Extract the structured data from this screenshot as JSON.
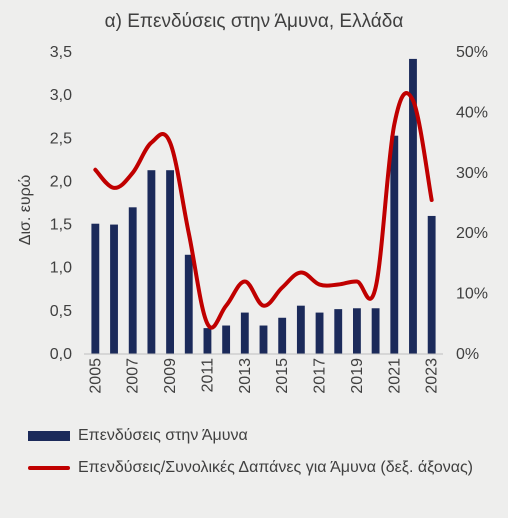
{
  "chart_data": {
    "type": "bar",
    "title": "α) Επενδύσεις στην Άμυνα, Ελλάδα",
    "ylabel": "Δισ. ευρώ",
    "ylim": [
      0,
      3.5
    ],
    "y2lim": [
      0,
      50
    ],
    "y_ticks": [
      "0,0",
      "0,5",
      "1,0",
      "1,5",
      "2,0",
      "2,5",
      "3,0",
      "3,5"
    ],
    "y2_ticks": [
      "0%",
      "10%",
      "20%",
      "30%",
      "40%",
      "50%"
    ],
    "x": [
      2005,
      2006,
      2007,
      2008,
      2009,
      2010,
      2011,
      2012,
      2013,
      2014,
      2015,
      2016,
      2017,
      2018,
      2019,
      2020,
      2021,
      2022,
      2023
    ],
    "x_tick_labels": [
      "2005",
      "2007",
      "2009",
      "2011",
      "2013",
      "2015",
      "2017",
      "2019",
      "2021",
      "2023"
    ],
    "series": [
      {
        "name": "Επενδύσεις στην Άμυνα",
        "type": "bar",
        "axis": "left",
        "color": "#1b2a5a",
        "values": [
          1.51,
          1.5,
          1.7,
          2.13,
          2.13,
          1.15,
          0.3,
          0.33,
          0.48,
          0.33,
          0.42,
          0.56,
          0.48,
          0.52,
          0.53,
          0.53,
          2.53,
          3.42,
          1.6
        ]
      },
      {
        "name": "Επενδύσεις/Συνολικές Δαπάνες για Άμυνα (δεξ. άξονας)",
        "type": "line",
        "axis": "right",
        "color": "#c00000",
        "values": [
          30.5,
          27.5,
          30,
          35,
          35,
          20,
          5,
          8,
          12,
          8,
          11,
          13.5,
          11.5,
          11.5,
          12,
          11,
          38,
          42,
          25.5
        ]
      }
    ]
  }
}
